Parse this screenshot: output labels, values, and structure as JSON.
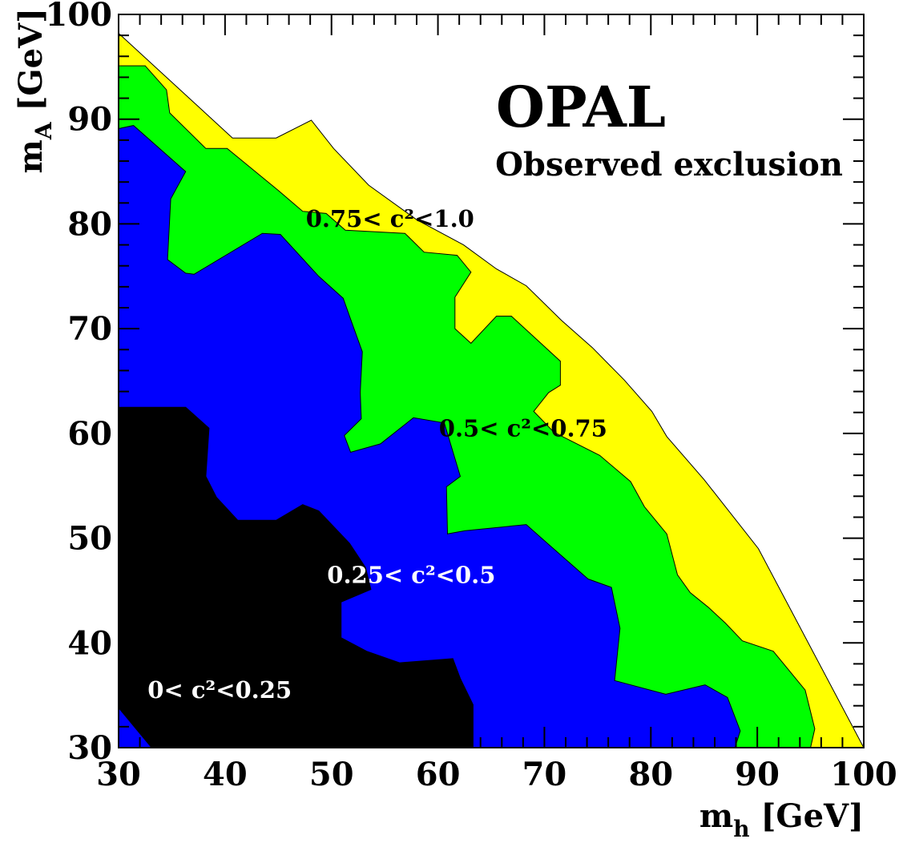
{
  "chart_data": {
    "type": "area",
    "title": "OPAL",
    "subtitle": "Observed exclusion",
    "xlabel": "m_h [GeV]",
    "ylabel": "m_A [GeV]",
    "xlim": [
      30,
      100
    ],
    "ylim": [
      30,
      100
    ],
    "xticks": [
      30,
      40,
      50,
      60,
      70,
      80,
      90,
      100
    ],
    "yticks": [
      30,
      40,
      50,
      60,
      70,
      80,
      90,
      100
    ],
    "grid": false,
    "colors": {
      "0-0.25": "#000000",
      "0.25-0.5": "#0000ff",
      "0.5-0.75": "#00ff00",
      "0.75-1.0": "#ffff00",
      "frame": "#000000",
      "white_text": "#ffffff"
    },
    "regions": [
      {
        "range": "0.75-1.0",
        "label": "0.75< c²<1.0",
        "label_at": [
          55.5,
          80.5
        ],
        "label_color": "#000000",
        "boundary": [
          [
            30,
            98.2
          ],
          [
            40.7,
            88.2
          ],
          [
            44.8,
            88.2
          ],
          [
            48.1,
            89.9
          ],
          [
            50.2,
            87.2
          ],
          [
            53.5,
            83.7
          ],
          [
            58.0,
            80.4
          ],
          [
            62.4,
            78.0
          ],
          [
            65.5,
            75.7
          ],
          [
            68.3,
            74.1
          ],
          [
            71.6,
            70.8
          ],
          [
            74.5,
            68.2
          ],
          [
            77.5,
            65.1
          ],
          [
            80.1,
            62.1
          ],
          [
            81.5,
            59.7
          ],
          [
            85,
            55.6
          ],
          [
            90.1,
            49.0
          ],
          [
            100,
            30
          ],
          [
            30,
            30
          ]
        ]
      },
      {
        "range": "0.5-0.75",
        "label": "0.5< c²<0.75",
        "label_at": [
          68,
          60.5
        ],
        "label_color": "#000000",
        "boundary": [
          [
            30,
            95.1
          ],
          [
            32.5,
            95.1
          ],
          [
            34.5,
            92.8
          ],
          [
            34.8,
            90.6
          ],
          [
            38.2,
            87.2
          ],
          [
            40.2,
            87.2
          ],
          [
            45,
            83.2
          ],
          [
            47.3,
            81.2
          ],
          [
            49.5,
            81.0
          ],
          [
            51.3,
            79.4
          ],
          [
            56.9,
            79.1
          ],
          [
            58.7,
            77.3
          ],
          [
            61.8,
            77.0
          ],
          [
            63.1,
            75.4
          ],
          [
            61.6,
            73.0
          ],
          [
            61.6,
            70.0
          ],
          [
            63.1,
            68.6
          ],
          [
            65.5,
            71.2
          ],
          [
            66.9,
            71.2
          ],
          [
            71.5,
            66.9
          ],
          [
            71.5,
            64.6
          ],
          [
            70.4,
            63.9
          ],
          [
            69.0,
            62.1
          ],
          [
            70.9,
            60.1
          ],
          [
            75.2,
            57.9
          ],
          [
            78.1,
            55.4
          ],
          [
            79.4,
            53.0
          ],
          [
            81.5,
            50.4
          ],
          [
            82.5,
            46.5
          ],
          [
            83.7,
            44.8
          ],
          [
            85.4,
            43.4
          ],
          [
            87.0,
            41.9
          ],
          [
            88.6,
            40.2
          ],
          [
            91.5,
            39.2
          ],
          [
            94.5,
            35.5
          ],
          [
            95.4,
            31.8
          ],
          [
            95.0,
            30
          ],
          [
            30,
            30
          ]
        ]
      },
      {
        "range": "0.25-0.5",
        "label": "0.25< c²<0.5",
        "label_at": [
          57.5,
          46.5
        ],
        "label_color": "#ffffff",
        "boundary": [
          [
            30,
            89.1
          ],
          [
            31.4,
            89.4
          ],
          [
            36.3,
            85.0
          ],
          [
            34.9,
            82.4
          ],
          [
            34.6,
            76.6
          ],
          [
            36.3,
            75.3
          ],
          [
            37.1,
            75.2
          ],
          [
            43.5,
            79.1
          ],
          [
            45.2,
            79.0
          ],
          [
            48.8,
            75.0
          ],
          [
            51.1,
            72.9
          ],
          [
            51.9,
            70.6
          ],
          [
            52.9,
            67.8
          ],
          [
            52.7,
            63.9
          ],
          [
            52.8,
            61.4
          ],
          [
            51.2,
            59.8
          ],
          [
            51.8,
            58.2
          ],
          [
            54.6,
            59.0
          ],
          [
            57.7,
            61.5
          ],
          [
            60.6,
            61.0
          ],
          [
            62.1,
            55.9
          ],
          [
            60.8,
            54.9
          ],
          [
            60.9,
            50.4
          ],
          [
            62.5,
            50.7
          ],
          [
            68.3,
            51.3
          ],
          [
            70.4,
            49.4
          ],
          [
            74.1,
            46.1
          ],
          [
            76.3,
            45.3
          ],
          [
            77.1,
            41.4
          ],
          [
            76.6,
            36.4
          ],
          [
            81.4,
            35.1
          ],
          [
            85.1,
            36.0
          ],
          [
            87.2,
            34.8
          ],
          [
            88.4,
            31.6
          ],
          [
            87.9,
            30
          ],
          [
            30,
            30
          ]
        ]
      },
      {
        "range": "0-0.25",
        "label": "0< c²<0.25",
        "label_at": [
          39.5,
          35.5
        ],
        "label_color": "#ffffff",
        "boundary": [
          [
            30,
            62.5
          ],
          [
            36.3,
            62.5
          ],
          [
            38.5,
            60.5
          ],
          [
            38.2,
            55.9
          ],
          [
            39.2,
            53.9
          ],
          [
            41.2,
            51.7
          ],
          [
            44.8,
            51.7
          ],
          [
            47.3,
            53.2
          ],
          [
            48.8,
            52.6
          ],
          [
            51.7,
            49.5
          ],
          [
            53.2,
            47.2
          ],
          [
            53.7,
            45.1
          ],
          [
            50.9,
            43.9
          ],
          [
            50.9,
            40.5
          ],
          [
            53.3,
            39.2
          ],
          [
            56.4,
            38.1
          ],
          [
            61.4,
            38.5
          ],
          [
            62.1,
            36.6
          ],
          [
            63.3,
            34.1
          ],
          [
            63.3,
            30
          ],
          [
            33.1,
            30
          ],
          [
            30,
            33.8
          ]
        ]
      }
    ]
  }
}
